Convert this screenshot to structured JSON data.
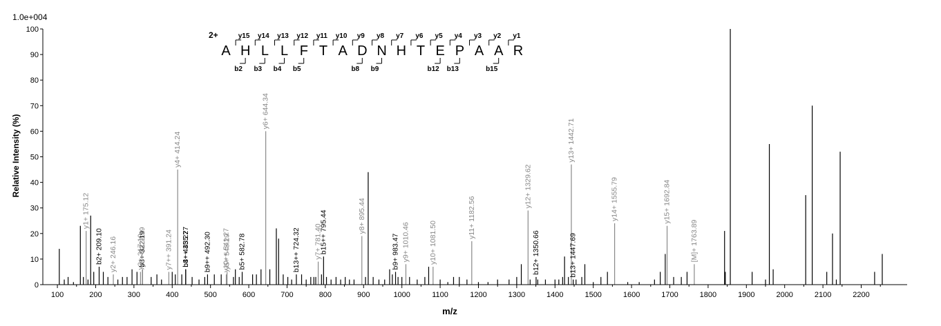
{
  "chart_data": {
    "type": "bar",
    "subtype": "mass-spectrum",
    "scale_label": "1.0e+004",
    "xlabel": "m/z",
    "ylabel": "Relative   Intensity (%)",
    "xlim": [
      62,
      2320
    ],
    "ylim": [
      0,
      100
    ],
    "xticks": [
      100,
      200,
      300,
      400,
      500,
      600,
      700,
      800,
      900,
      1000,
      1100,
      1200,
      1300,
      1400,
      1500,
      1600,
      1700,
      1800,
      1900,
      2000,
      2100,
      2200
    ],
    "yticks": [
      0,
      10,
      20,
      30,
      40,
      50,
      60,
      70,
      80,
      90,
      100
    ],
    "peptide": {
      "charge": "2+",
      "sequence": [
        "A",
        "H",
        "L",
        "L",
        "F",
        "T",
        "A",
        "D",
        "N",
        "H",
        "T",
        "E",
        "P",
        "A",
        "A",
        "R"
      ],
      "y_ions": [
        "y15",
        "y14",
        "y13",
        "y12",
        "y11",
        "y10",
        "y9",
        "y8",
        "y7",
        "y6",
        "y5",
        "y4",
        "y3",
        "y2",
        "y1"
      ],
      "b_ions": [
        {
          "after": 1,
          "label": "b2"
        },
        {
          "after": 2,
          "label": "b3"
        },
        {
          "after": 3,
          "label": "b4"
        },
        {
          "after": 4,
          "label": "b5"
        },
        {
          "after": 7,
          "label": "b8"
        },
        {
          "after": 8,
          "label": "b9"
        },
        {
          "after": 11,
          "label": "b12"
        },
        {
          "after": 12,
          "label": "b13"
        },
        {
          "after": 14,
          "label": "b15"
        }
      ]
    },
    "labeled_peaks": [
      {
        "mz": 175.12,
        "intensity": 21,
        "label": "y1+ 175.12",
        "color": "#888888"
      },
      {
        "mz": 209.1,
        "intensity": 7,
        "label": "b2+ 209.10",
        "color": "#000000"
      },
      {
        "mz": 246.16,
        "intensity": 4,
        "label": "y2+ 246.16",
        "color": "#888888"
      },
      {
        "mz": 317.19,
        "intensity": 5,
        "label": "y3+ 317.19",
        "color": "#888888"
      },
      {
        "mz": 322.19,
        "intensity": 6,
        "label": "b3+ 322.19",
        "color": "#000000"
      },
      {
        "mz": 322.19,
        "intensity": 6,
        "label": "y6++ 322.19",
        "color": "#888888"
      },
      {
        "mz": 391.24,
        "intensity": 5,
        "label": "y7++ 391.24",
        "color": "#888888"
      },
      {
        "mz": 414.24,
        "intensity": 45,
        "label": "y4+ 414.24",
        "color": "#888888"
      },
      {
        "mz": 435.27,
        "intensity": 6,
        "label": "b4+ 435.27",
        "color": "#000000"
      },
      {
        "mz": 435.27,
        "intensity": 6,
        "label": "b8++ 435.27",
        "color": "#000000"
      },
      {
        "mz": 492.3,
        "intensity": 4,
        "label": "b9++ 492.30",
        "color": "#000000"
      },
      {
        "mz": 541.27,
        "intensity": 4,
        "label": "y10++ 541.27",
        "color": "#888888"
      },
      {
        "mz": 543.29,
        "intensity": 5,
        "label": "y5+ 543.29",
        "color": "#888888"
      },
      {
        "mz": 582.78,
        "intensity": 5,
        "label": "b5+ 582.78",
        "color": "#000000"
      },
      {
        "mz": 644.34,
        "intensity": 60,
        "label": "y6+ 644.34",
        "color": "#888888"
      },
      {
        "mz": 724.32,
        "intensity": 4,
        "label": "b13++ 724.32",
        "color": "#000000"
      },
      {
        "mz": 781.4,
        "intensity": 9,
        "label": "y7+ 781.40",
        "color": "#888888"
      },
      {
        "mz": 795.44,
        "intensity": 11,
        "label": "b15++ 795.44",
        "color": "#000000"
      },
      {
        "mz": 895.44,
        "intensity": 19,
        "label": "y8+ 895.44",
        "color": "#888888"
      },
      {
        "mz": 983.47,
        "intensity": 5,
        "label": "b9+ 983.47",
        "color": "#000000"
      },
      {
        "mz": 1010.46,
        "intensity": 8,
        "label": "y9+ 1010.46",
        "color": "#888888"
      },
      {
        "mz": 1081.5,
        "intensity": 7,
        "label": "y10+ 1081.50",
        "color": "#888888"
      },
      {
        "mz": 1182.56,
        "intensity": 17,
        "label": "y11+ 1182.56",
        "color": "#888888"
      },
      {
        "mz": 1329.62,
        "intensity": 29,
        "label": "y12+ 1329.62",
        "color": "#888888"
      },
      {
        "mz": 1350.66,
        "intensity": 3,
        "label": "b12+ 1350.66",
        "color": "#000000"
      },
      {
        "mz": 1442.71,
        "intensity": 47,
        "label": "y13+ 1442.71",
        "color": "#888888"
      },
      {
        "mz": 1447.69,
        "intensity": 2,
        "label": "b13+ 1447.69",
        "color": "#000000"
      },
      {
        "mz": 1555.79,
        "intensity": 24,
        "label": "y14+ 1555.79",
        "color": "#888888"
      },
      {
        "mz": 1692.84,
        "intensity": 23,
        "label": "y15+ 1692.84",
        "color": "#888888"
      },
      {
        "mz": 1763.89,
        "intensity": 8,
        "label": "[M]+ 1763.89",
        "color": "#888888"
      }
    ],
    "other_peaks": [
      [
        105,
        14
      ],
      [
        118,
        2
      ],
      [
        128,
        3
      ],
      [
        142,
        1
      ],
      [
        160,
        23
      ],
      [
        168,
        3
      ],
      [
        180,
        2
      ],
      [
        187,
        27
      ],
      [
        195,
        5
      ],
      [
        220,
        5
      ],
      [
        232,
        3
      ],
      [
        258,
        2
      ],
      [
        270,
        3
      ],
      [
        282,
        3
      ],
      [
        295,
        6
      ],
      [
        308,
        5
      ],
      [
        345,
        3
      ],
      [
        360,
        4
      ],
      [
        372,
        2
      ],
      [
        400,
        5
      ],
      [
        408,
        4
      ],
      [
        425,
        4
      ],
      [
        452,
        3
      ],
      [
        470,
        2
      ],
      [
        485,
        3
      ],
      [
        510,
        4
      ],
      [
        528,
        4
      ],
      [
        560,
        3
      ],
      [
        565,
        6
      ],
      [
        575,
        3
      ],
      [
        610,
        4
      ],
      [
        620,
        4
      ],
      [
        632,
        6
      ],
      [
        655,
        6
      ],
      [
        672,
        22
      ],
      [
        678,
        18
      ],
      [
        690,
        4
      ],
      [
        702,
        3
      ],
      [
        712,
        2
      ],
      [
        738,
        4
      ],
      [
        750,
        2
      ],
      [
        762,
        3
      ],
      [
        770,
        3
      ],
      [
        775,
        3
      ],
      [
        790,
        4
      ],
      [
        803,
        3
      ],
      [
        815,
        2
      ],
      [
        828,
        3
      ],
      [
        840,
        2
      ],
      [
        852,
        3
      ],
      [
        863,
        2
      ],
      [
        875,
        2
      ],
      [
        905,
        3
      ],
      [
        912,
        44
      ],
      [
        925,
        3
      ],
      [
        940,
        2
      ],
      [
        955,
        2
      ],
      [
        968,
        6
      ],
      [
        975,
        4
      ],
      [
        990,
        3
      ],
      [
        1000,
        3
      ],
      [
        1020,
        3
      ],
      [
        1040,
        2
      ],
      [
        1060,
        3
      ],
      [
        1070,
        7
      ],
      [
        1100,
        2
      ],
      [
        1120,
        1
      ],
      [
        1135,
        3
      ],
      [
        1150,
        3
      ],
      [
        1170,
        2
      ],
      [
        1200,
        1
      ],
      [
        1225,
        1
      ],
      [
        1250,
        2
      ],
      [
        1280,
        2
      ],
      [
        1300,
        3
      ],
      [
        1312,
        8
      ],
      [
        1335,
        2
      ],
      [
        1355,
        2
      ],
      [
        1375,
        2
      ],
      [
        1400,
        2
      ],
      [
        1410,
        2
      ],
      [
        1420,
        3
      ],
      [
        1425,
        11
      ],
      [
        1435,
        3
      ],
      [
        1455,
        2
      ],
      [
        1470,
        3
      ],
      [
        1478,
        8
      ],
      [
        1500,
        1
      ],
      [
        1520,
        3
      ],
      [
        1537,
        5
      ],
      [
        1590,
        1
      ],
      [
        1620,
        1
      ],
      [
        1660,
        2
      ],
      [
        1675,
        5
      ],
      [
        1688,
        12
      ],
      [
        1710,
        3
      ],
      [
        1730,
        3
      ],
      [
        1745,
        5
      ],
      [
        1843,
        21
      ],
      [
        1845,
        5
      ],
      [
        1858,
        100
      ],
      [
        1915,
        5
      ],
      [
        1950,
        2
      ],
      [
        1960,
        55
      ],
      [
        1970,
        6
      ],
      [
        2055,
        35
      ],
      [
        2072,
        70
      ],
      [
        2110,
        5
      ],
      [
        2125,
        20
      ],
      [
        2135,
        2
      ],
      [
        2145,
        52
      ],
      [
        2235,
        5
      ],
      [
        2255,
        12
      ]
    ]
  }
}
